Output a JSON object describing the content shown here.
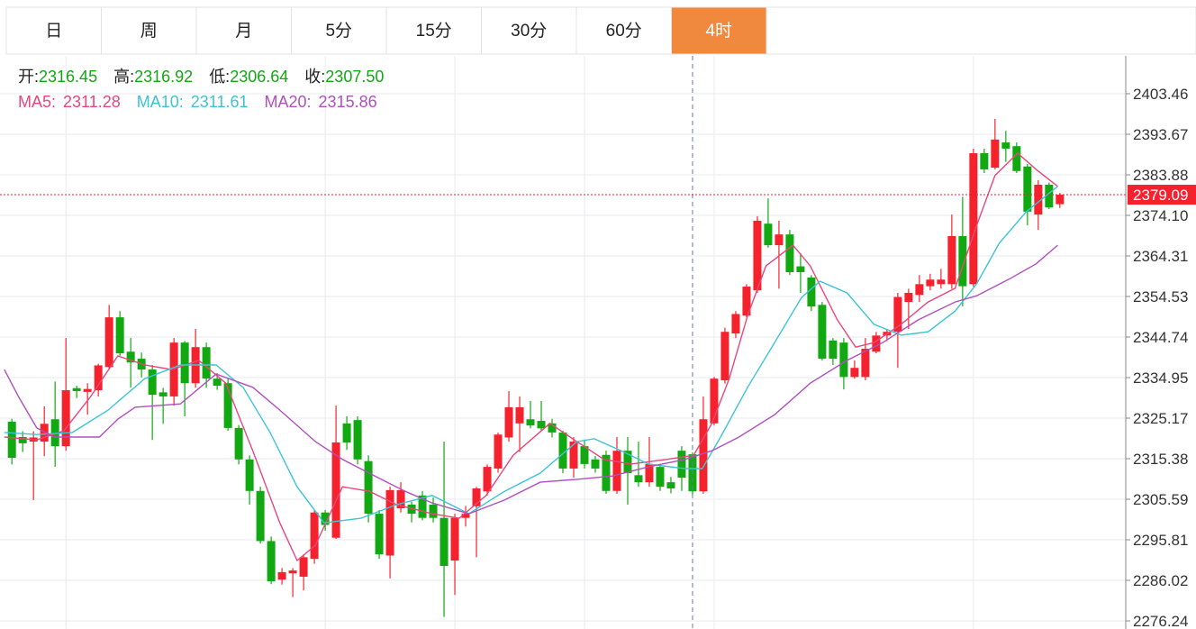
{
  "tabs": [
    "日",
    "周",
    "月",
    "5分",
    "15分",
    "30分",
    "60分",
    "4时"
  ],
  "active_tab": 7,
  "chart_data": {
    "type": "candlestick",
    "up_color": "#f5222d",
    "down_color": "#12a812",
    "info": [
      {
        "label": "开:",
        "value": 2316.45,
        "color": "#12a812"
      },
      {
        "label": "高:",
        "value": 2316.92,
        "color": "#12a812"
      },
      {
        "label": "低:",
        "value": 2306.64,
        "color": "#12a812"
      },
      {
        "label": "收:",
        "value": 2307.5,
        "value_label": "2307.50",
        "color": "#12a812"
      }
    ],
    "candles": [
      [
        2324.3,
        2325,
        2314,
        2315.6
      ],
      [
        2320.6,
        2322,
        2317,
        2319.1
      ],
      [
        2319.5,
        2322,
        2305.4,
        2320.5
      ],
      [
        2319.5,
        2328,
        2316,
        2323.8
      ],
      [
        2324.9,
        2334,
        2313.4,
        2318.4
      ],
      [
        2318.4,
        2344.5,
        2317.3,
        2331.9
      ],
      [
        2332.4,
        2333,
        2330,
        2331.7
      ],
      [
        2331.5,
        2333.6,
        2326,
        2332.2
      ],
      [
        2331.9,
        2338.3,
        2330.4,
        2337.9
      ],
      [
        2337.5,
        2352.5,
        2336.9,
        2349.5
      ],
      [
        2349.5,
        2351,
        2340.2,
        2340.8
      ],
      [
        2341.2,
        2344.5,
        2332.5,
        2338.6
      ],
      [
        2339.5,
        2341,
        2335,
        2336.9
      ],
      [
        2336.9,
        2338,
        2319.9,
        2330.8
      ],
      [
        2331.4,
        2332.5,
        2323.8,
        2330.4
      ],
      [
        2330.4,
        2344.5,
        2328.2,
        2343.4
      ],
      [
        2343.4,
        2343.8,
        2325.6,
        2333.6
      ],
      [
        2333.6,
        2346.7,
        2332.5,
        2342.3
      ],
      [
        2342.3,
        2343.4,
        2332.5,
        2334.7
      ],
      [
        2334.7,
        2336,
        2332,
        2333
      ],
      [
        2333.6,
        2334.7,
        2322.1,
        2322.8
      ],
      [
        2322.8,
        2323.5,
        2314,
        2315.2
      ],
      [
        2315.2,
        2316.2,
        2304.3,
        2307.6
      ],
      [
        2307.6,
        2308.6,
        2294.9,
        2295.5
      ],
      [
        2295.5,
        2296.6,
        2285.1,
        2285.8
      ],
      [
        2286.2,
        2289,
        2285,
        2288
      ],
      [
        2287.7,
        2289,
        2282,
        2288.4
      ],
      [
        2286.9,
        2292.3,
        2283.6,
        2291.6
      ],
      [
        2291.2,
        2303,
        2290,
        2302.4
      ],
      [
        2302.4,
        2303,
        2298,
        2299.4
      ],
      [
        2296.3,
        2328.2,
        2296,
        2319.3
      ],
      [
        2323.9,
        2325.6,
        2317.5,
        2319.3
      ],
      [
        2324.7,
        2325.6,
        2314,
        2315.2
      ],
      [
        2314.8,
        2316.2,
        2300,
        2302.1
      ],
      [
        2302.1,
        2303,
        2291.2,
        2292.3
      ],
      [
        2292,
        2308.6,
        2286.5,
        2307.8
      ],
      [
        2303.4,
        2309.7,
        2302.4,
        2307.8
      ],
      [
        2304.3,
        2305,
        2300,
        2302.1
      ],
      [
        2306.5,
        2307.6,
        2300.5,
        2301.1
      ],
      [
        2304.3,
        2306,
        2300,
        2301.1
      ],
      [
        2301.1,
        2319.5,
        2277.2,
        2289.5
      ],
      [
        2290.8,
        2302.1,
        2282.5,
        2301.1
      ],
      [
        2301.1,
        2304,
        2299,
        2302.1
      ],
      [
        2303.9,
        2308.6,
        2291.6,
        2308.2
      ],
      [
        2307.5,
        2314,
        2306.5,
        2313.4
      ],
      [
        2313,
        2321.7,
        2312,
        2321.2
      ],
      [
        2320.5,
        2331.7,
        2319.5,
        2327.8
      ],
      [
        2323.9,
        2330.4,
        2317,
        2327.8
      ],
      [
        2324.9,
        2329.3,
        2322.7,
        2323.4
      ],
      [
        2324.5,
        2329.3,
        2322.1,
        2322.7
      ],
      [
        2323.9,
        2325,
        2320.5,
        2321.7
      ],
      [
        2321.7,
        2322.1,
        2311.9,
        2313
      ],
      [
        2313,
        2320.6,
        2310.8,
        2319.5
      ],
      [
        2318.4,
        2320,
        2313,
        2314.1
      ],
      [
        2315.2,
        2316,
        2312,
        2313
      ],
      [
        2316.3,
        2317.3,
        2306.9,
        2307.6
      ],
      [
        2307.6,
        2320.6,
        2306.9,
        2317.3
      ],
      [
        2317.3,
        2320.6,
        2304.3,
        2311.9
      ],
      [
        2311.4,
        2319.5,
        2308.6,
        2309.7
      ],
      [
        2309.7,
        2320.6,
        2308.6,
        2314.1
      ],
      [
        2313.4,
        2314.1,
        2307.6,
        2308.6
      ],
      [
        2309.7,
        2311,
        2307,
        2308.2
      ],
      [
        2317.3,
        2318.4,
        2307.6,
        2310.8
      ],
      [
        2316.45,
        2316.92,
        2306.64,
        2307.5
      ],
      [
        2307.5,
        2330.4,
        2306.9,
        2324.9
      ],
      [
        2323.9,
        2335.1,
        2323.4,
        2334.7
      ],
      [
        2334.3,
        2347,
        2333.5,
        2346
      ],
      [
        2345.6,
        2351,
        2344.5,
        2350.3
      ],
      [
        2349.9,
        2357.5,
        2349.5,
        2356.9
      ],
      [
        2356,
        2373.9,
        2355.4,
        2372.8
      ],
      [
        2372.1,
        2378.2,
        2366.3,
        2366.9
      ],
      [
        2366.9,
        2372.8,
        2356.4,
        2369.5
      ],
      [
        2369.5,
        2370.6,
        2359.7,
        2360.4
      ],
      [
        2361.8,
        2365,
        2355.4,
        2360.4
      ],
      [
        2359.1,
        2359.7,
        2351,
        2352.1
      ],
      [
        2352.5,
        2353.2,
        2339.1,
        2339.5
      ],
      [
        2343.9,
        2344.5,
        2338,
        2339.5
      ],
      [
        2343.4,
        2344.5,
        2332.1,
        2335.1
      ],
      [
        2335.1,
        2339.1,
        2334.7,
        2337.3
      ],
      [
        2335.1,
        2344.5,
        2334.3,
        2341.9
      ],
      [
        2341.2,
        2346,
        2340.8,
        2345.1
      ],
      [
        2345.1,
        2346.7,
        2343.8,
        2346
      ],
      [
        2346,
        2355.4,
        2337.3,
        2354.4
      ],
      [
        2353.2,
        2356.4,
        2346.7,
        2355.4
      ],
      [
        2354.9,
        2359.7,
        2353.2,
        2357.5
      ],
      [
        2357,
        2360,
        2356,
        2358.6
      ],
      [
        2357.5,
        2361.2,
        2356.4,
        2358.6
      ],
      [
        2357.5,
        2374.3,
        2356.4,
        2369.1
      ],
      [
        2369.1,
        2378.6,
        2352.1,
        2357
      ],
      [
        2357.5,
        2390.2,
        2356.9,
        2389.1
      ],
      [
        2389.1,
        2390.2,
        2384.3,
        2385.2
      ],
      [
        2385.6,
        2397.4,
        2385.2,
        2392.4
      ],
      [
        2391.7,
        2394.5,
        2387,
        2390.2
      ],
      [
        2390.8,
        2391.7,
        2384.3,
        2384.8
      ],
      [
        2385.9,
        2386.5,
        2371.7,
        2375
      ],
      [
        2374.3,
        2382.6,
        2370.6,
        2381.5
      ],
      [
        2381.5,
        2382,
        2375.6,
        2376
      ],
      [
        2376.8,
        2379.5,
        2375.9,
        2379.09
      ]
    ],
    "series": [
      {
        "name": "MA5:",
        "readout": 2311.28,
        "color": "#e8467c",
        "x": [
          -0.7,
          2.3,
          4.8,
          7.3,
          9.8,
          12.3,
          14.8,
          17.3,
          19.8,
          22.3,
          24.8,
          26.4,
          28.1,
          30.6,
          33.1,
          35.6,
          38.9,
          41.4,
          43.9,
          46.4,
          49.8,
          52.3,
          54.8,
          57.3,
          60.6,
          63.1,
          64.8,
          66.4,
          68.1,
          69.8,
          72.3,
          73.9,
          76.4,
          78.1,
          79.8,
          82.3,
          84.8,
          87.3,
          89.3,
          91.0,
          93.1,
          94.8,
          96.8
        ],
        "values": [
          2320.6,
          2319.9,
          2322.1,
          2330.4,
          2340.2,
          2338.0,
          2336.9,
          2339.1,
          2333.6,
          2317.3,
          2299.9,
          2290.8,
          2294.5,
          2308.6,
          2307.5,
          2304.3,
          2302.1,
          2301.0,
          2306.5,
          2316.2,
          2323.9,
          2319.5,
          2315.2,
          2314.1,
          2315.2,
          2316.2,
          2323.9,
          2334.7,
          2349.9,
          2361.9,
          2366.9,
          2361.9,
          2348.9,
          2342.3,
          2343.4,
          2347.8,
          2353.2,
          2356.5,
          2371.7,
          2383.7,
          2389.1,
          2385.2,
          2381.1
        ]
      },
      {
        "name": "MA10:",
        "readout": 2311.61,
        "color": "#3cc4d4",
        "x": [
          -0.7,
          2.3,
          5.6,
          8.9,
          12.3,
          15.6,
          18.9,
          21.4,
          23.9,
          26.4,
          28.9,
          32.3,
          35.6,
          38.9,
          42.3,
          45.6,
          48.9,
          52.3,
          53.9,
          56.4,
          58.9,
          62.3,
          63.9,
          65.6,
          68.1,
          70.6,
          73.1,
          74.8,
          77.3,
          79.8,
          82.3,
          84.8,
          87.3,
          89.3,
          91.4,
          93.9,
          96.8
        ],
        "values": [
          2321.7,
          2321.2,
          2321.7,
          2327.1,
          2334.7,
          2338.0,
          2338.0,
          2332.6,
          2321.7,
          2308.6,
          2299.9,
          2301.0,
          2304.3,
          2306.5,
          2302.1,
          2307.5,
          2311.9,
          2319.5,
          2320.2,
          2317.3,
          2314.1,
          2313.0,
          2313.0,
          2320.6,
          2332.6,
          2343.4,
          2354.3,
          2358.2,
          2355.4,
          2347.8,
          2345.2,
          2346.0,
          2351.0,
          2357.6,
          2367.4,
          2375.0,
          2381.1
        ]
      },
      {
        "name": "MA20:",
        "readout": 2315.86,
        "color": "#b04fbf",
        "x": [
          -0.7,
          0.6,
          2.3,
          3.9,
          8.1,
          9.8,
          11.4,
          15.6,
          18.9,
          22.3,
          24.8,
          28.1,
          30.6,
          33.9,
          36.4,
          38.9,
          42.3,
          45.6,
          48.9,
          52.3,
          55.6,
          58.9,
          62.3,
          64.8,
          67.3,
          70.6,
          73.9,
          77.3,
          80.6,
          83.9,
          87.3,
          89.3,
          92.3,
          94.8,
          96.8
        ],
        "values": [
          2336.9,
          2330.4,
          2322.8,
          2320.6,
          2320.6,
          2324.9,
          2327.8,
          2328.6,
          2335.8,
          2332.6,
          2327.1,
          2319.5,
          2315.2,
          2310.8,
          2307.5,
          2304.7,
          2302.1,
          2305.4,
          2309.7,
          2310.4,
          2311.2,
          2313.4,
          2315.2,
          2317.3,
          2320.6,
          2326.0,
          2333.6,
          2339.1,
          2343.4,
          2348.9,
          2353.2,
          2354.7,
          2358.7,
          2362.4,
          2366.9
        ]
      }
    ],
    "last_price": 2379.09,
    "last_price_color": "#f5222d",
    "crosshair_x": 63,
    "xlim": [
      -1.1,
      103.1
    ],
    "xgrid": [
      5,
      29,
      41,
      53,
      65,
      89
    ],
    "ylim": [
      2274.28,
      2412.59
    ],
    "yticks": [
      2403.46,
      2393.67,
      2383.88,
      {
        "value": 2374.1,
        "label": "2374.10"
      },
      2364.31,
      2354.53,
      2344.74,
      2334.95,
      2325.17,
      2315.38,
      2305.59,
      2295.81,
      2286.02,
      2276.24
    ],
    "grid": true
  }
}
